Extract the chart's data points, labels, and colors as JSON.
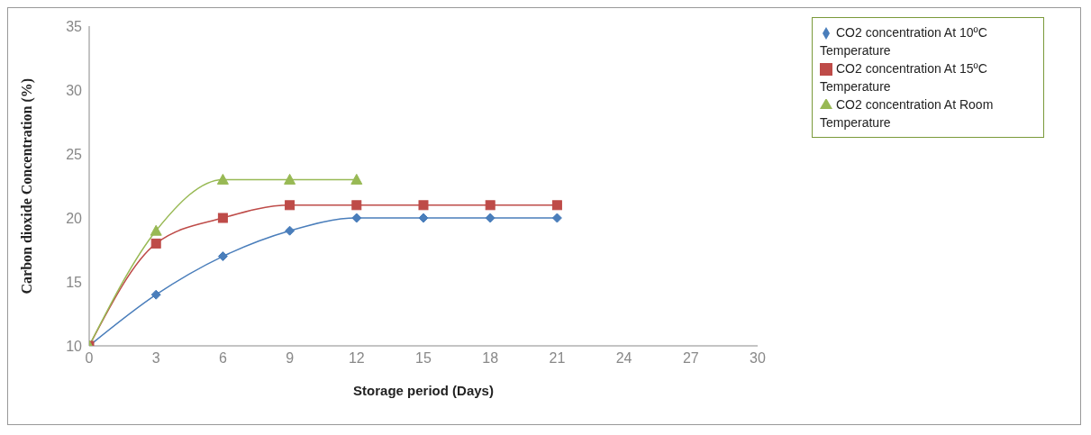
{
  "chart_data": {
    "type": "line",
    "xlabel": "Storage period (Days)",
    "ylabel": "Carbon dioxide Concentration (%)",
    "xlim": [
      0,
      30
    ],
    "xticks": [
      0,
      3,
      6,
      9,
      12,
      15,
      18,
      21,
      24,
      27,
      30
    ],
    "ylim": [
      10,
      35
    ],
    "yticks": [
      10,
      15,
      20,
      25,
      30,
      35
    ],
    "grid": false,
    "legend": "top right",
    "line_style": "solid",
    "series": [
      {
        "name": "CO2 concentration At 10ºC Temperature",
        "color": "#4a7ebb",
        "marker": "diamond",
        "x": [
          0,
          3,
          6,
          9,
          12,
          15,
          18,
          21
        ],
        "values": [
          10,
          14,
          17,
          19,
          20,
          20,
          20,
          20
        ]
      },
      {
        "name": "CO2 concentration At 15ºC Temperature",
        "color": "#be4b48",
        "marker": "square",
        "x": [
          0,
          3,
          6,
          9,
          12,
          15,
          18,
          21
        ],
        "values": [
          10,
          18,
          20,
          21,
          21,
          21,
          21,
          21
        ]
      },
      {
        "name": "CO2 concentration At Room Temperature",
        "color": "#98b954",
        "marker": "triangle",
        "x": [
          0,
          3,
          6,
          9,
          12
        ],
        "values": [
          10,
          19,
          23,
          23,
          23
        ]
      }
    ]
  }
}
